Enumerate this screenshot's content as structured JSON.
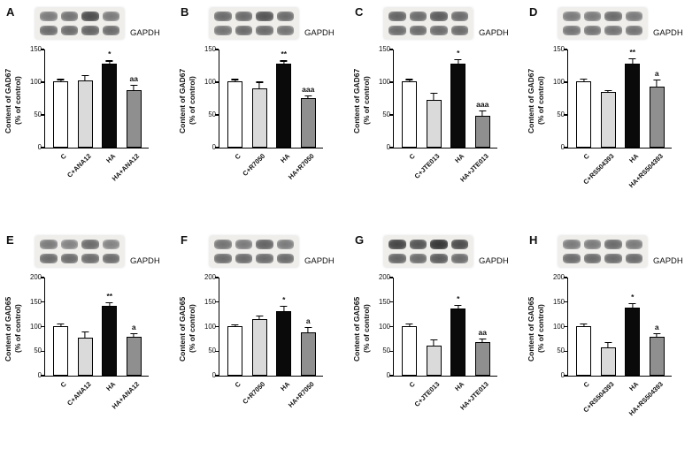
{
  "figure": {
    "gapdh_label": "GAPDH",
    "bar_colors": [
      "#ffffff",
      "#dadada",
      "#0a0a0a",
      "#8f8f8f"
    ],
    "axis_color": "#000000"
  },
  "chart_data": [
    {
      "type": "bar",
      "panel": "A",
      "ylabel": "Content of GAD67 (% of control)",
      "ylabel_line1": "Content of GAD67",
      "ylabel_line2": "(% of control)",
      "ylim": [
        0,
        150
      ],
      "yticks": [
        0,
        50,
        100,
        150
      ],
      "categories": [
        "C",
        "C+ANA12",
        "HA",
        "HA+ANA12"
      ],
      "values": [
        100,
        102,
        127,
        87
      ],
      "errors": [
        4,
        8,
        5,
        8
      ],
      "significance": [
        "",
        "",
        "*",
        "aa"
      ],
      "blot_rows": [
        [
          0.5,
          0.55,
          0.8,
          0.5
        ],
        [
          0.6,
          0.6,
          0.65,
          0.6
        ]
      ]
    },
    {
      "type": "bar",
      "panel": "B",
      "ylabel": "Content of GAD67 (% of control)",
      "ylabel_line1": "Content of GAD67",
      "ylabel_line2": "(% of control)",
      "ylim": [
        0,
        150
      ],
      "yticks": [
        0,
        50,
        100,
        150
      ],
      "categories": [
        "C",
        "C+R7050",
        "HA",
        "HA+R7050"
      ],
      "values": [
        100,
        90,
        127,
        75
      ],
      "errors": [
        4,
        10,
        5,
        4
      ],
      "significance": [
        "",
        "",
        "**",
        "aaa"
      ],
      "blot_rows": [
        [
          0.6,
          0.6,
          0.75,
          0.6
        ],
        [
          0.55,
          0.6,
          0.6,
          0.55
        ]
      ]
    },
    {
      "type": "bar",
      "panel": "C",
      "ylabel": "Content of GAD67 (% of control)",
      "ylabel_line1": "Content of GAD67",
      "ylabel_line2": "(% of control)",
      "ylim": [
        0,
        150
      ],
      "yticks": [
        0,
        50,
        100,
        150
      ],
      "categories": [
        "C",
        "C+JTE013",
        "HA",
        "HA+JTE013"
      ],
      "values": [
        100,
        73,
        127,
        48
      ],
      "errors": [
        4,
        10,
        7,
        8
      ],
      "significance": [
        "",
        "",
        "*",
        "aaa"
      ],
      "blot_rows": [
        [
          0.65,
          0.6,
          0.7,
          0.6
        ],
        [
          0.6,
          0.6,
          0.6,
          0.6
        ]
      ]
    },
    {
      "type": "bar",
      "panel": "D",
      "ylabel": "Content of GAD67 (% of control)",
      "ylabel_line1": "Content of GAD67",
      "ylabel_line2": "(% of control)",
      "ylim": [
        0,
        150
      ],
      "yticks": [
        0,
        50,
        100,
        150
      ],
      "categories": [
        "C",
        "C+RS504393",
        "HA",
        "HA+RS504393"
      ],
      "values": [
        100,
        84,
        127,
        93
      ],
      "errors": [
        5,
        3,
        8,
        10
      ],
      "significance": [
        "",
        "",
        "**",
        "a"
      ],
      "blot_rows": [
        [
          0.5,
          0.5,
          0.6,
          0.5
        ],
        [
          0.55,
          0.55,
          0.55,
          0.55
        ]
      ]
    },
    {
      "type": "bar",
      "panel": "E",
      "ylabel": "Content of GAD65 (% of control)",
      "ylabel_line1": "Content of GAD65",
      "ylabel_line2": "(% of control)",
      "ylim": [
        0,
        200
      ],
      "yticks": [
        0,
        50,
        100,
        150,
        200
      ],
      "categories": [
        "C",
        "C+ANA12",
        "HA",
        "HA+ANA12"
      ],
      "values": [
        100,
        77,
        141,
        78
      ],
      "errors": [
        5,
        12,
        8,
        8
      ],
      "significance": [
        "",
        "",
        "**",
        "a"
      ],
      "blot_rows": [
        [
          0.5,
          0.45,
          0.6,
          0.45
        ],
        [
          0.6,
          0.6,
          0.6,
          0.6
        ]
      ]
    },
    {
      "type": "bar",
      "panel": "F",
      "ylabel": "Content of GAD65 (% of control)",
      "ylabel_line1": "Content of GAD65",
      "ylabel_line2": "(% of control)",
      "ylim": [
        0,
        200
      ],
      "yticks": [
        0,
        50,
        100,
        150,
        200
      ],
      "categories": [
        "C",
        "C+R7050",
        "HA",
        "HA+R7050"
      ],
      "values": [
        100,
        115,
        131,
        88
      ],
      "errors": [
        4,
        7,
        10,
        10
      ],
      "significance": [
        "",
        "",
        "*",
        "a"
      ],
      "blot_rows": [
        [
          0.55,
          0.5,
          0.65,
          0.5
        ],
        [
          0.6,
          0.6,
          0.6,
          0.6
        ]
      ]
    },
    {
      "type": "bar",
      "panel": "G",
      "ylabel": "Content of GAD65 (% of control)",
      "ylabel_line1": "Content of GAD65",
      "ylabel_line2": "(% of control)",
      "ylim": [
        0,
        200
      ],
      "yticks": [
        0,
        50,
        100,
        150,
        200
      ],
      "categories": [
        "C",
        "C+JTE013",
        "HA",
        "HA+JTE013"
      ],
      "values": [
        100,
        61,
        135,
        68
      ],
      "errors": [
        5,
        13,
        8,
        7
      ],
      "significance": [
        "",
        "",
        "*",
        "aa"
      ],
      "blot_rows": [
        [
          0.85,
          0.75,
          0.95,
          0.8
        ],
        [
          0.65,
          0.6,
          0.7,
          0.6
        ]
      ]
    },
    {
      "type": "bar",
      "panel": "H",
      "ylabel": "Content of GAD65 (% of control)",
      "ylabel_line1": "Content of GAD65",
      "ylabel_line2": "(% of control)",
      "ylim": [
        0,
        200
      ],
      "yticks": [
        0,
        50,
        100,
        150,
        200
      ],
      "categories": [
        "C",
        "C+RS504393",
        "HA",
        "HA+RS504393"
      ],
      "values": [
        100,
        58,
        137,
        79
      ],
      "errors": [
        5,
        10,
        10,
        7
      ],
      "significance": [
        "",
        "",
        "*",
        "a"
      ],
      "blot_rows": [
        [
          0.5,
          0.5,
          0.6,
          0.5
        ],
        [
          0.6,
          0.6,
          0.6,
          0.6
        ]
      ]
    }
  ]
}
